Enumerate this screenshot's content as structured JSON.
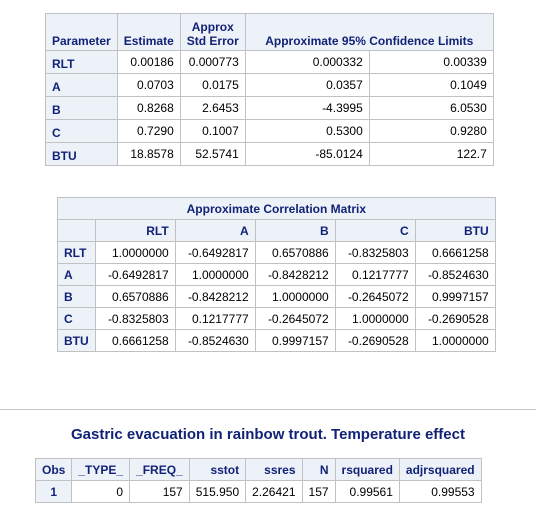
{
  "param_table": {
    "headers": {
      "parameter": "Parameter",
      "estimate": "Estimate",
      "stderr_top": "Approx",
      "stderr_bottom": "Std Error",
      "ci": "Approximate 95% Confidence Limits"
    },
    "rows": [
      {
        "name": "RLT",
        "estimate": "0.00186",
        "stderr": "0.000773",
        "lower": "0.000332",
        "upper": "0.00339"
      },
      {
        "name": "A",
        "estimate": "0.0703",
        "stderr": "0.0175",
        "lower": "0.0357",
        "upper": "0.1049"
      },
      {
        "name": "B",
        "estimate": "0.8268",
        "stderr": "2.6453",
        "lower": "-4.3995",
        "upper": "6.0530"
      },
      {
        "name": "C",
        "estimate": "0.7290",
        "stderr": "0.1007",
        "lower": "0.5300",
        "upper": "0.9280"
      },
      {
        "name": "BTU",
        "estimate": "18.8578",
        "stderr": "52.5741",
        "lower": "-85.0124",
        "upper": "122.7"
      }
    ]
  },
  "corr_table": {
    "caption": "Approximate Correlation Matrix",
    "columns": [
      "RLT",
      "A",
      "B",
      "C",
      "BTU"
    ],
    "rows": [
      {
        "name": "RLT",
        "values": [
          "1.0000000",
          "-0.6492817",
          "0.6570886",
          "-0.8325803",
          "0.6661258"
        ]
      },
      {
        "name": "A",
        "values": [
          "-0.6492817",
          "1.0000000",
          "-0.8428212",
          "0.1217777",
          "-0.8524630"
        ]
      },
      {
        "name": "B",
        "values": [
          "0.6570886",
          "-0.8428212",
          "1.0000000",
          "-0.2645072",
          "0.9997157"
        ]
      },
      {
        "name": "C",
        "values": [
          "-0.8325803",
          "0.1217777",
          "-0.2645072",
          "1.0000000",
          "-0.2690528"
        ]
      },
      {
        "name": "BTU",
        "values": [
          "0.6661258",
          "-0.8524630",
          "0.9997157",
          "-0.2690528",
          "1.0000000"
        ]
      }
    ]
  },
  "section_title": "Gastric evacuation in rainbow trout. Temperature effect",
  "summary_table": {
    "columns": [
      "Obs",
      "_TYPE_",
      "_FREQ_",
      "sstot",
      "ssres",
      "N",
      "rsquared",
      "adjrsquared"
    ],
    "rows": [
      {
        "values": [
          "1",
          "0",
          "157",
          "515.950",
          "2.26421",
          "157",
          "0.99561",
          "0.99553"
        ]
      }
    ]
  },
  "colors": {
    "header_bg": "#edf2f9",
    "header_text": "#112277",
    "border": "#c1c1c1"
  }
}
